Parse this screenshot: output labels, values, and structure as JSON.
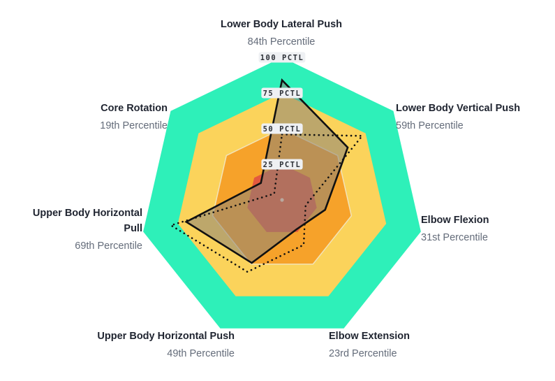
{
  "chart_data": {
    "type": "radar",
    "axes": [
      {
        "name": "Lower Body Lateral Push",
        "value_label": "84th Percentile",
        "value": 84
      },
      {
        "name": "Lower Body Vertical Push",
        "value_label": "59th Percentile",
        "value": 59
      },
      {
        "name": "Elbow Flexion",
        "value_label": "31st Percentile",
        "value": 31
      },
      {
        "name": "Elbow Extension",
        "value_label": "23rd Percentile",
        "value": 23
      },
      {
        "name": "Upper Body Horizontal Push",
        "value_label": "49th Percentile",
        "value": 49
      },
      {
        "name": "Upper Body Horizontal Pull",
        "value_label": "69th Percentile",
        "value": 69
      },
      {
        "name": "Core Rotation",
        "value_label": "19th Percentile",
        "value": 19
      }
    ],
    "rings": [
      {
        "label": "100 PCTL",
        "value": 100,
        "color": "#2ef0b9"
      },
      {
        "label": "75 PCTL",
        "value": 75,
        "color": "#fbd35b"
      },
      {
        "label": "50 PCTL",
        "value": 50,
        "color": "#f6a22a"
      },
      {
        "label": "25 PCTL",
        "value": 25,
        "color": "#e3593f"
      }
    ],
    "comparison_series_values": [
      46,
      72,
      17,
      35,
      56,
      80,
      7
    ],
    "range": [
      0,
      100
    ],
    "colors": {
      "series_fill": "#8a8378",
      "series_stroke": "#111111",
      "inner_outline": "#f2e3b8",
      "tag_background": "#eef0f3"
    }
  }
}
